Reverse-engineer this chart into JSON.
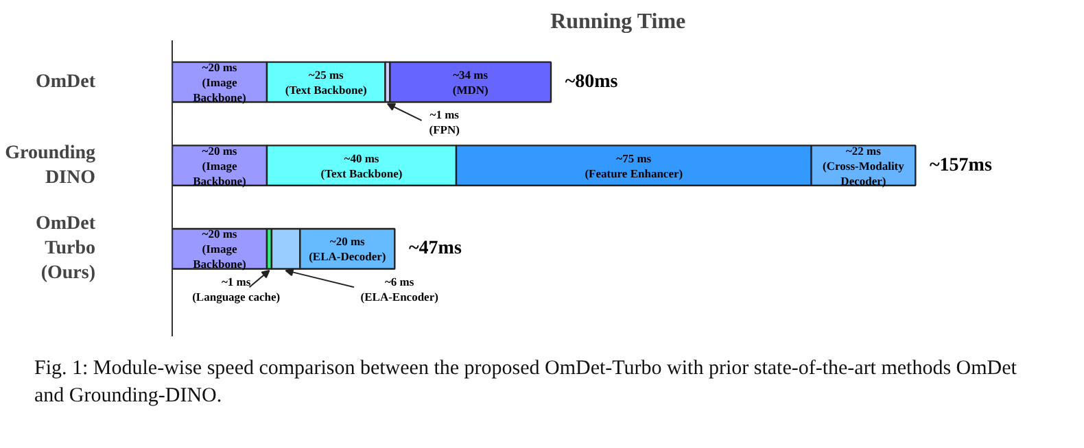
{
  "chart_data": {
    "type": "bar",
    "orientation": "horizontal",
    "stacked": true,
    "title": "Running Time",
    "categories": [
      "OmDet",
      "Grounding\nDINO",
      "OmDet\nTurbo\n(Ours)"
    ],
    "series": [
      {
        "colors": [
          "#9999ff",
          "#9999ff",
          "#9999ff"
        ],
        "values": [
          20,
          20,
          20
        ],
        "value_labels": [
          "~20 ms\n(Image\nBackbone)",
          "~20 ms\n(Image\nBackbone)",
          "~20 ms\n(Image\nBackbone)"
        ]
      },
      {
        "colors": [
          "#66ffff",
          "#66ffff",
          "#33ee88"
        ],
        "values": [
          25,
          40,
          1
        ],
        "value_labels": [
          "~25 ms\n(Text Backbone)",
          "~40 ms\n(Text Backbone)",
          "~1 ms\n(Language cache)"
        ]
      },
      {
        "colors": [
          "#ccccff",
          null,
          "#99ccff"
        ],
        "values": [
          1,
          null,
          6
        ],
        "value_labels": [
          "~1 ms\n(FPN)",
          null,
          "~6 ms\n(ELA-Encoder)"
        ]
      },
      {
        "colors": [
          "#6666ff",
          "#3399ff",
          "#66bbff"
        ],
        "values": [
          34,
          75,
          20
        ],
        "value_labels": [
          "~34 ms\n(MDN)",
          "~75 ms\n(Feature Enhancer)",
          "~20 ms\n(ELA-Decoder)"
        ]
      },
      {
        "colors": [
          null,
          "#66b3ff",
          null
        ],
        "values": [
          null,
          22,
          null
        ],
        "value_labels": [
          null,
          "~22 ms\n(Cross-Modality\nDecoder)",
          null
        ]
      }
    ],
    "totals": [
      "~80ms",
      "~157ms",
      "~47ms"
    ],
    "annotations": [
      "Fig. 1: Module-wise speed comparison between the proposed OmDet-Turbo with prior state-of-the-art methods OmDet and Grounding-DINO."
    ]
  }
}
